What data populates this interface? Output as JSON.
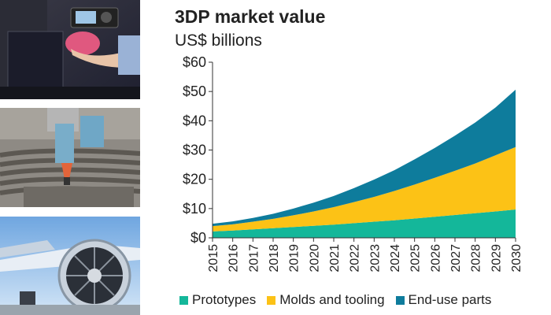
{
  "colors": {
    "prototypes": "#14b79a",
    "molds": "#fcc216",
    "enduse": "#0e7c9c",
    "axis": "#333333",
    "grid": "#bbbbbb"
  },
  "photos": [
    {
      "icon": "3d-printer-photo"
    },
    {
      "icon": "concrete-printer-photo"
    },
    {
      "icon": "jet-engine-photo"
    }
  ],
  "chart_data": {
    "type": "area",
    "stacked": true,
    "title": "3DP market value",
    "subtitle": "US$ billions",
    "xlabel": "",
    "ylabel": "",
    "ylim": [
      0,
      60
    ],
    "yticks": [
      "$0",
      "$10",
      "$20",
      "$30",
      "$40",
      "$50",
      "$60"
    ],
    "x": [
      "2015",
      "2016",
      "2017",
      "2018",
      "2019",
      "2020",
      "2021",
      "2022",
      "2023",
      "2024",
      "2025",
      "2026",
      "2027",
      "2028",
      "2029",
      "2030"
    ],
    "series": [
      {
        "name": "Prototypes",
        "values": [
          2.2,
          2.5,
          2.9,
          3.3,
          3.7,
          4.1,
          4.5,
          5.0,
          5.5,
          6.0,
          6.6,
          7.2,
          7.8,
          8.4,
          9.0,
          9.7
        ]
      },
      {
        "name": "Molds and tooling",
        "values": [
          1.8,
          2.1,
          2.6,
          3.2,
          4.0,
          4.9,
          6.0,
          7.2,
          8.5,
          10.0,
          11.6,
          13.3,
          15.1,
          17.0,
          19.2,
          21.3
        ]
      },
      {
        "name": "End-use parts",
        "values": [
          0.8,
          1.0,
          1.3,
          1.7,
          2.3,
          3.0,
          3.8,
          4.8,
          5.9,
          7.1,
          8.6,
          10.2,
          12.0,
          14.0,
          16.3,
          19.6
        ]
      }
    ],
    "grid": false,
    "legend": "bottom"
  }
}
